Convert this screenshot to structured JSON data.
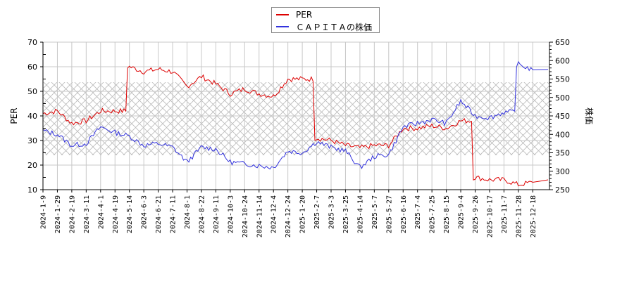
{
  "legend": {
    "items": [
      {
        "label": "PER",
        "color": "#dd0000"
      },
      {
        "label": "ＣＡＰＩＴＡの株価",
        "color": "#3333dd"
      }
    ]
  },
  "axes": {
    "left_title": "PER",
    "right_title": "株価",
    "left_ticks": [
      "70",
      "60",
      "50",
      "40",
      "30",
      "20",
      "10"
    ],
    "right_ticks": [
      "650",
      "600",
      "550",
      "500",
      "450",
      "400",
      "350",
      "300",
      "250"
    ],
    "x_ticks": [
      "2024-1-9",
      "2024-1-29",
      "2024-2-19",
      "2024-3-11",
      "2024-4-1",
      "2024-4-19",
      "2024-5-14",
      "2024-6-3",
      "2024-6-21",
      "2024-7-11",
      "2024-8-1",
      "2024-8-22",
      "2024-9-11",
      "2024-10-3",
      "2024-10-24",
      "2024-11-14",
      "2024-12-4",
      "2024-12-24",
      "2025-1-20",
      "2025-2-7",
      "2025-3-3",
      "2025-3-25",
      "2025-4-14",
      "2025-5-7",
      "2025-5-27",
      "2025-6-16",
      "2025-7-4",
      "2025-7-25",
      "2025-8-15",
      "2025-9-4",
      "2025-9-26",
      "2025-10-17",
      "2025-11-7",
      "2025-11-28",
      "2025-12-18"
    ]
  },
  "chart_data": {
    "type": "line",
    "title": "",
    "xlabel": "",
    "ylabel": "PER",
    "y2label": "株価",
    "ylim": [
      10,
      70
    ],
    "y2lim": [
      250,
      650
    ],
    "grid": true,
    "legend_position": "top-center",
    "shaded_band": {
      "axis": "PER",
      "from": 24,
      "to": 53.5,
      "style": "crosshatch"
    },
    "x": [
      "2024-1-9",
      "2024-1-29",
      "2024-2-19",
      "2024-3-11",
      "2024-4-1",
      "2024-4-19",
      "2024-5-14",
      "2024-6-3",
      "2024-6-21",
      "2024-7-11",
      "2024-8-1",
      "2024-8-22",
      "2024-9-11",
      "2024-10-3",
      "2024-10-24",
      "2024-11-14",
      "2024-12-4",
      "2024-12-24",
      "2025-1-20",
      "2025-2-7",
      "2025-3-3",
      "2025-3-25",
      "2025-4-14",
      "2025-5-7",
      "2025-5-27",
      "2025-6-16",
      "2025-7-4",
      "2025-7-25",
      "2025-8-15",
      "2025-9-4",
      "2025-9-26",
      "2025-10-17",
      "2025-11-7",
      "2025-11-28",
      "2025-12-18"
    ],
    "series": [
      {
        "name": "PER",
        "axis": "left",
        "color": "#dd0000",
        "values": [
          41,
          42,
          37,
          38,
          42,
          42,
          60,
          58,
          59,
          58,
          52,
          56,
          53,
          49,
          51,
          49,
          48,
          55,
          55,
          31,
          30,
          28,
          27,
          28,
          28,
          35,
          35,
          36,
          35,
          38,
          15,
          14,
          14,
          12,
          13
        ]
      },
      {
        "name": "ＣＡＰＩＴＡの株価",
        "axis": "right",
        "color": "#3333dd",
        "values": [
          410,
          400,
          370,
          375,
          420,
          405,
          395,
          370,
          375,
          365,
          325,
          365,
          360,
          325,
          320,
          315,
          310,
          355,
          350,
          380,
          365,
          355,
          310,
          340,
          345,
          420,
          430,
          440,
          430,
          490,
          450,
          445,
          460,
          590,
          575
        ]
      }
    ]
  }
}
